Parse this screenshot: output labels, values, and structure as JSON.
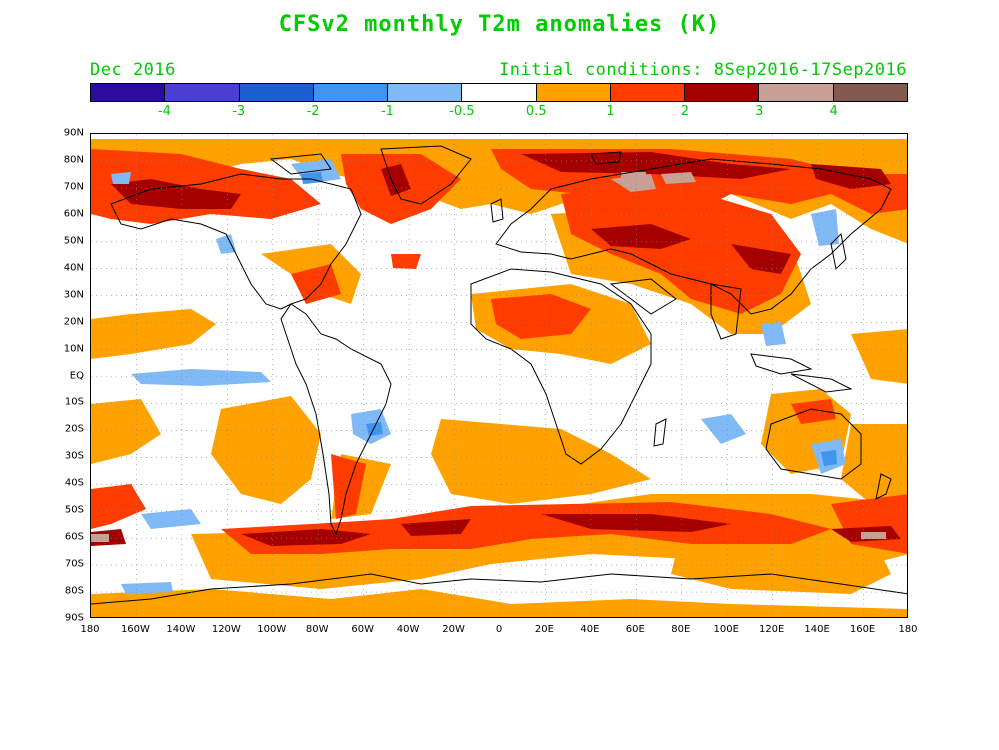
{
  "title": "CFSv2 monthly T2m anomalies (K)",
  "subtitle_left": "Dec 2016",
  "subtitle_right": "Initial conditions: 8Sep2016-17Sep2016",
  "legend": {
    "colors": [
      "#2b0c9e",
      "#4a3fd0",
      "#1c5fcf",
      "#3f94ee",
      "#7fb9f6",
      "#ffffff",
      "#ffa200",
      "#ff3c00",
      "#a50000",
      "#c8a096",
      "#835a4f"
    ],
    "labels": [
      "-4",
      "-3",
      "-2",
      "-1",
      "-0.5",
      "0.5",
      "1",
      "2",
      "3",
      "4"
    ]
  },
  "y_ticks": [
    "90N",
    "80N",
    "70N",
    "60N",
    "50N",
    "40N",
    "30N",
    "20N",
    "10N",
    "EQ",
    "10S",
    "20S",
    "30S",
    "40S",
    "50S",
    "60S",
    "70S",
    "80S",
    "90S"
  ],
  "x_ticks": [
    "180",
    "160W",
    "140W",
    "120W",
    "100W",
    "80W",
    "60W",
    "40W",
    "20W",
    "0",
    "20E",
    "40E",
    "60E",
    "80E",
    "100E",
    "120E",
    "140E",
    "160E",
    "180"
  ]
}
